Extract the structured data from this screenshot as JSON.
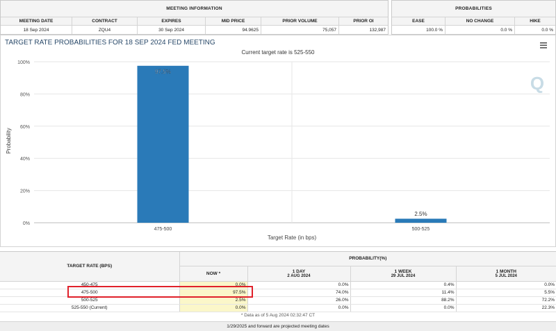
{
  "meeting_info": {
    "title": "MEETING INFORMATION",
    "columns": [
      "MEETING DATE",
      "CONTRACT",
      "EXPIRES",
      "MID PRICE",
      "PRIOR VOLUME",
      "PRIOR OI"
    ],
    "values": [
      "18 Sep 2024",
      "ZQU4",
      "30 Sep 2024",
      "94.9625",
      "75,057",
      "132,987"
    ]
  },
  "probabilities_info": {
    "title": "PROBABILITIES",
    "columns": [
      "EASE",
      "NO CHANGE",
      "HIKE"
    ],
    "values": [
      "100.0 %",
      "0.0 %",
      "0.0 %"
    ]
  },
  "chart": {
    "menu_icon": "hamburger-menu-icon",
    "watermark": "Q",
    "colors": {
      "bar": "#2a7ab8",
      "grid": "#e6e6e6",
      "title": "#2a4a6a"
    }
  },
  "chart_data": {
    "type": "bar",
    "title": "TARGET RATE PROBABILITIES FOR 18 SEP 2024 FED MEETING",
    "subtitle": "Current target rate is 525-550",
    "xlabel": "Target Rate (in bps)",
    "ylabel": "Probability",
    "categories": [
      "475-500",
      "500-525"
    ],
    "values": [
      97.5,
      2.5
    ],
    "data_labels": [
      "97.5%",
      "2.5%"
    ],
    "ylim": [
      0,
      100
    ],
    "yticks": [
      "0%",
      "20%",
      "40%",
      "60%",
      "80%",
      "100%"
    ],
    "grid": true
  },
  "prob_table": {
    "header_rate": "TARGET RATE (BPS)",
    "header_prob": "PROBABILITY(%)",
    "cols": [
      {
        "label": "NOW *",
        "sub": ""
      },
      {
        "label": "1 DAY",
        "sub": "2 AUG 2024"
      },
      {
        "label": "1 WEEK",
        "sub": "29 JUL 2024"
      },
      {
        "label": "1 MONTH",
        "sub": "5 JUL 2024"
      }
    ],
    "rows": [
      {
        "rate": "450-475",
        "vals": [
          "0.0%",
          "0.0%",
          "0.4%",
          "0.0%"
        ]
      },
      {
        "rate": "475-500",
        "vals": [
          "97.5%",
          "74.0%",
          "11.4%",
          "5.5%"
        ]
      },
      {
        "rate": "500-525",
        "vals": [
          "2.5%",
          "26.0%",
          "88.2%",
          "72.2%"
        ]
      },
      {
        "rate": "525-550 (Current)",
        "vals": [
          "0.0%",
          "0.0%",
          "0.0%",
          "22.3%"
        ]
      }
    ],
    "data_note": "* Data as of 5 Aug 2024 02:32:47 CT",
    "footer": "1/29/2025 and forward are projected meeting dates"
  }
}
